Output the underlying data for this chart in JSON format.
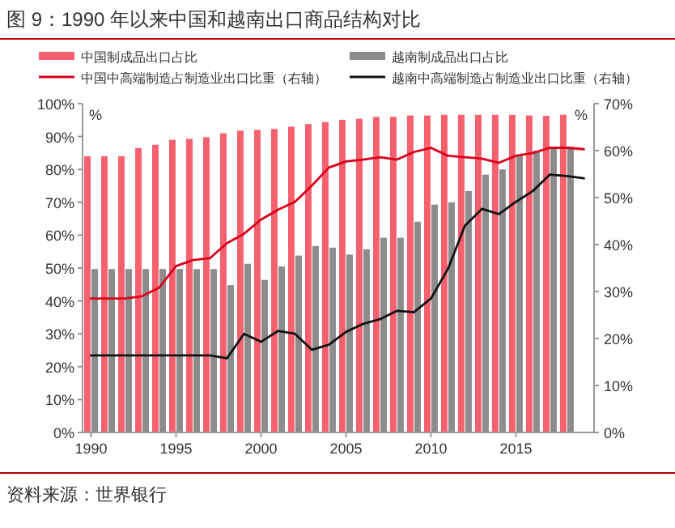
{
  "chart_data": {
    "type": "bar",
    "title": "图 9：1990 年以来中国和越南出口商品结构对比",
    "x": [
      1990,
      1991,
      1992,
      1993,
      1994,
      1995,
      1996,
      1997,
      1998,
      1999,
      2000,
      2001,
      2002,
      2003,
      2004,
      2005,
      2006,
      2007,
      2008,
      2009,
      2010,
      2011,
      2012,
      2013,
      2014,
      2015,
      2016,
      2017,
      2018
    ],
    "series": [
      {
        "name": "中国制成品出口占比",
        "color": "#f5616f",
        "values": [
          84,
          84,
          84,
          86.5,
          87.5,
          89,
          89.3,
          89.8,
          91,
          91.8,
          92,
          92.3,
          93,
          93.8,
          94.4,
          95.1,
          95.4,
          96,
          96,
          96.4,
          96.4,
          96.6,
          96.6,
          96.6,
          96.6,
          96.6,
          96.4,
          96.3,
          96.6
        ]
      },
      {
        "name": "越南制成品出口占比",
        "color": "#8c8c8c",
        "values": [
          49.7,
          49.7,
          49.7,
          49.7,
          49.7,
          49.7,
          49.7,
          49.7,
          44.8,
          51.3,
          46.4,
          50.5,
          53.8,
          56.7,
          56.2,
          54.1,
          55.7,
          59.2,
          59.2,
          64.1,
          69.3,
          70,
          73.4,
          78.4,
          80,
          84.6,
          85.7,
          86.2,
          86.9
        ]
      },
      {
        "name": "中国中高端制造占制造业出口比重（右轴）",
        "type": "line",
        "axis": "y2",
        "color": "#d9001b",
        "x": [
          1990,
          1991,
          1992,
          1993,
          1994,
          1995,
          1996,
          1997,
          1998,
          1999,
          2000,
          2001,
          2002,
          2003,
          2004,
          2005,
          2006,
          2007,
          2008,
          2009,
          2010,
          2011,
          2012,
          2013,
          2014,
          2015,
          2016,
          2017,
          2018,
          2019
        ],
        "values": [
          28.5,
          28.5,
          28.5,
          29,
          30.8,
          35.4,
          36.7,
          37.1,
          40.3,
          42.3,
          45.3,
          47.4,
          49.1,
          52.6,
          56.4,
          57.7,
          58.1,
          58.6,
          58.1,
          59.7,
          60.6,
          58.9,
          58.6,
          58.3,
          57.4,
          58.9,
          59.5,
          60.6,
          60.6,
          60.3
        ]
      },
      {
        "name": "越南中高端制造占制造业出口比重（右轴）",
        "type": "line",
        "axis": "y2",
        "color": "#111111",
        "x": [
          1990,
          1991,
          1992,
          1993,
          1994,
          1995,
          1996,
          1997,
          1998,
          1999,
          2000,
          2001,
          2002,
          2003,
          2004,
          2005,
          2006,
          2007,
          2008,
          2009,
          2010,
          2011,
          2012,
          2013,
          2014,
          2015,
          2016,
          2017,
          2018,
          2019
        ],
        "values": [
          16.4,
          16.4,
          16.4,
          16.4,
          16.4,
          16.4,
          16.4,
          16.4,
          15.8,
          21,
          19.3,
          21.6,
          21,
          17.6,
          18.7,
          21.4,
          23.1,
          24.1,
          25.9,
          25.6,
          28.5,
          34.8,
          44,
          47.6,
          46.5,
          49.1,
          51.4,
          54.9,
          54.6,
          54.1
        ]
      }
    ],
    "xlim": [
      1989.5,
      2019.6
    ],
    "xticks": [
      1990,
      1995,
      2000,
      2005,
      2010,
      2015
    ],
    "ylim": [
      0,
      100
    ],
    "yticks": [
      {
        "value": 0,
        "label": "0%"
      },
      {
        "value": 10,
        "label": "10%"
      },
      {
        "value": 20,
        "label": "20%"
      },
      {
        "value": 30,
        "label": "30%"
      },
      {
        "value": 40,
        "label": "40%"
      },
      {
        "value": 50,
        "label": "50%"
      },
      {
        "value": 60,
        "label": "60%"
      },
      {
        "value": 70,
        "label": "70%"
      },
      {
        "value": 80,
        "label": "80%"
      },
      {
        "value": 90,
        "label": "90%"
      },
      {
        "value": 100,
        "label": "100%"
      }
    ],
    "y2lim": [
      0,
      70
    ],
    "y2ticks": [
      {
        "value": 0,
        "label": "0%"
      },
      {
        "value": 10,
        "label": "10%"
      },
      {
        "value": 20,
        "label": "20%"
      },
      {
        "value": 30,
        "label": "30%"
      },
      {
        "value": 40,
        "label": "40%"
      },
      {
        "value": 50,
        "label": "50%"
      },
      {
        "value": 60,
        "label": "60%"
      },
      {
        "value": 70,
        "label": "70%"
      }
    ],
    "ylabel": "%",
    "y2label": "%",
    "legend": "top",
    "grid": false,
    "marker": "none",
    "line_style": "solid",
    "annotations": [
      "资料来源：世界银行"
    ]
  }
}
